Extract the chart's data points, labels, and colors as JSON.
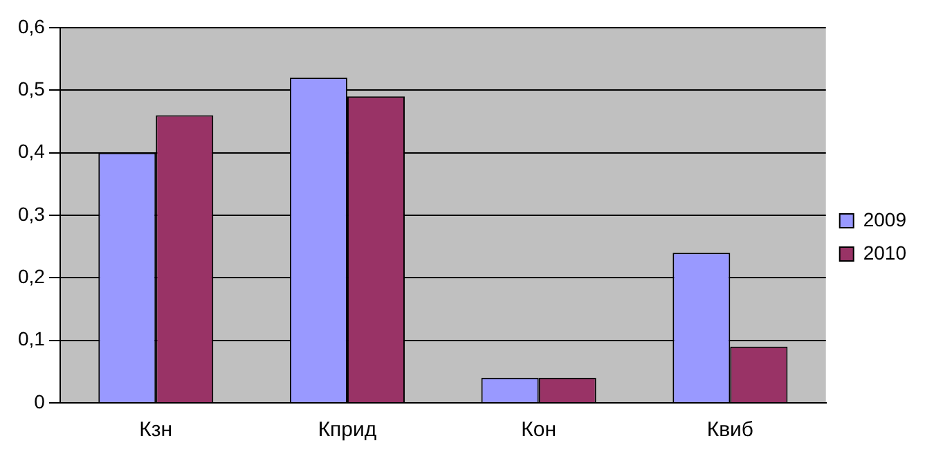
{
  "chart_data": {
    "type": "bar",
    "categories": [
      "Кзн",
      "Кприд",
      "Кон",
      "Квиб"
    ],
    "series": [
      {
        "name": "2009",
        "color": "#9999ff",
        "values": [
          0.4,
          0.52,
          0.04,
          0.24
        ]
      },
      {
        "name": "2010",
        "color": "#993366",
        "values": [
          0.46,
          0.49,
          0.04,
          0.09
        ]
      }
    ],
    "ylim": [
      0,
      0.6
    ],
    "yticks": [
      0,
      {
        "value": 0.1,
        "label": "0,1"
      },
      {
        "value": 0.2,
        "label": "0,2"
      },
      {
        "value": 0.3,
        "label": "0,3"
      },
      {
        "value": 0.4,
        "label": "0,4"
      },
      {
        "value": 0.5,
        "label": "0,5"
      },
      {
        "value": 0.6,
        "label": "0,6"
      }
    ],
    "grid": "y",
    "legend": "right"
  }
}
